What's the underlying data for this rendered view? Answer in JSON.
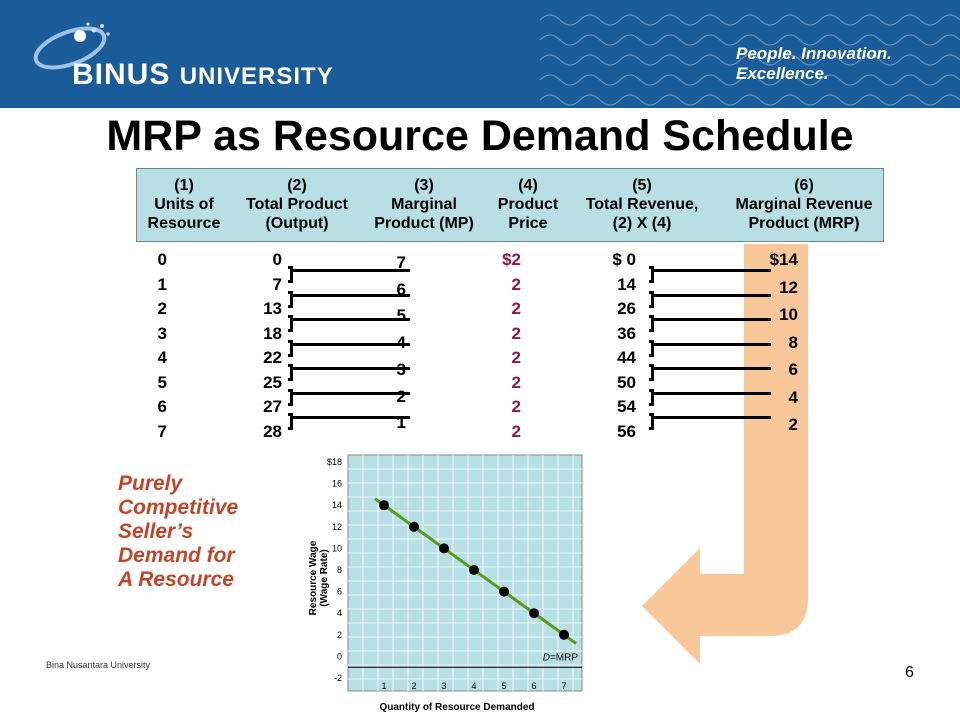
{
  "banner": {
    "logo_main": "BINUS",
    "logo_sub": "UNIVERSITY",
    "tagline": "People. Innovation. Excellence."
  },
  "title": "MRP as Resource Demand Schedule",
  "headers": [
    {
      "num": "(1)",
      "l1": "Units of",
      "l2": "Resource"
    },
    {
      "num": "(2)",
      "l1": "Total Product",
      "l2": "(Output)"
    },
    {
      "num": "(3)",
      "l1": "Marginal",
      "l2": "Product (MP)"
    },
    {
      "num": "(4)",
      "l1": "Product",
      "l2": "Price"
    },
    {
      "num": "(5)",
      "l1": "Total Revenue,",
      "l2": "(2) X (4)"
    },
    {
      "num": "(6)",
      "l1": "Marginal Revenue",
      "l2": "Product (MRP)"
    }
  ],
  "table": {
    "units": [
      "0",
      "1",
      "2",
      "3",
      "4",
      "5",
      "6",
      "7"
    ],
    "total_product": [
      "0",
      "7",
      "13",
      "18",
      "22",
      "25",
      "27",
      "28"
    ],
    "marginal_product": [
      "7",
      "6",
      "5",
      "4",
      "3",
      "2",
      "1"
    ],
    "price": [
      "$2",
      "2",
      "2",
      "2",
      "2",
      "2",
      "2",
      "2"
    ],
    "total_revenue": [
      "$ 0",
      "14",
      "26",
      "36",
      "44",
      "50",
      "54",
      "56"
    ],
    "mrp": [
      "$14",
      "12",
      "10",
      "8",
      "6",
      "4",
      "2"
    ]
  },
  "colors": {
    "banner": "#1a5b9a",
    "header_fill": "#b8dfe4",
    "price_text": "#8a1a3a",
    "arrow": "#f9c89a",
    "caption": "#c0462a",
    "demand_line": "#5a9a1a"
  },
  "caption_lines": [
    "Purely",
    "Competitive",
    "Seller’s",
    "Demand for",
    "A Resource"
  ],
  "chart_data": {
    "type": "scatter",
    "title": "",
    "xlabel": "Quantity  of Resource  Demanded",
    "ylabel": "Resource  Wage",
    "ylabel2": "(Wage Rate)",
    "line_label_prefix": "D",
    "line_label_suffix": "=MRP",
    "x_ticks": [
      "1",
      "2",
      "3",
      "4",
      "5",
      "6",
      "7"
    ],
    "y_ticks": [
      "-2",
      "0",
      "2",
      "4",
      "6",
      "8",
      "10",
      "12",
      "14",
      "16",
      "$18"
    ],
    "xlim": [
      0,
      7.6
    ],
    "ylim": [
      -2,
      18
    ],
    "grid": true,
    "points": [
      {
        "x": 1,
        "y": 14
      },
      {
        "x": 2,
        "y": 12
      },
      {
        "x": 3,
        "y": 10
      },
      {
        "x": 4,
        "y": 8
      },
      {
        "x": 5,
        "y": 6
      },
      {
        "x": 6,
        "y": 4
      },
      {
        "x": 7,
        "y": 2
      }
    ],
    "line": {
      "x": [
        0.7,
        7.4
      ],
      "y": [
        14.6,
        1.2
      ]
    }
  },
  "footer": "Bina Nusantara University",
  "page_number": "6"
}
